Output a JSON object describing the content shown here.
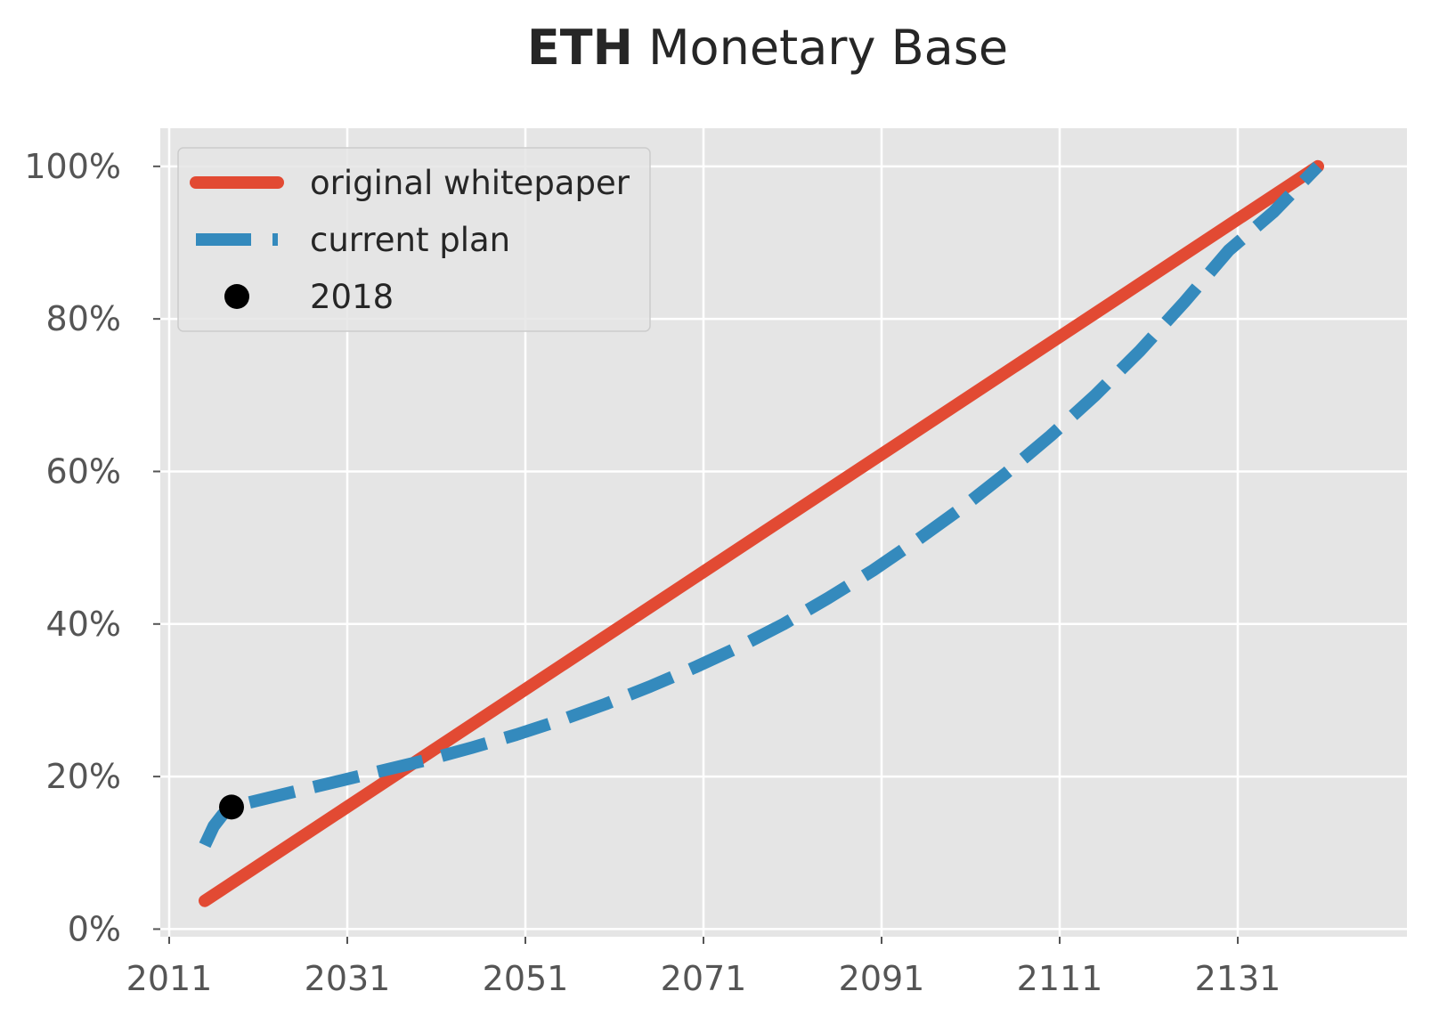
{
  "chart_data": {
    "type": "line",
    "title_bold": "ETH",
    "title_rest": " Monetary Base",
    "xlabel": "",
    "ylabel": "",
    "xlim": [
      2010,
      2150
    ],
    "ylim": [
      -1,
      105
    ],
    "x_ticks": [
      2011,
      2031,
      2051,
      2071,
      2091,
      2111,
      2131
    ],
    "x_tick_labels": [
      "2011",
      "2031",
      "2051",
      "2071",
      "2091",
      "2111",
      "2131"
    ],
    "y_ticks": [
      0,
      20,
      40,
      60,
      80,
      100
    ],
    "y_tick_labels": [
      "0%",
      "20%",
      "40%",
      "60%",
      "80%",
      "100%"
    ],
    "grid": true,
    "legend_position": "top-left",
    "series": [
      {
        "name": "original whitepaper",
        "style": "solid",
        "color": "#E24A33",
        "x": [
          2015,
          2140
        ],
        "y": [
          3.7,
          100
        ]
      },
      {
        "name": "current plan",
        "style": "dashed",
        "color": "#348ABD",
        "x": [
          2015,
          2016,
          2017,
          2018,
          2020,
          2025,
          2030,
          2035,
          2040,
          2045,
          2050,
          2055,
          2060,
          2065,
          2070,
          2075,
          2080,
          2085,
          2090,
          2095,
          2100,
          2105,
          2110,
          2115,
          2120,
          2125,
          2130,
          2135,
          2140
        ],
        "y": [
          11,
          13.5,
          15,
          16,
          16.6,
          18,
          19.4,
          20.8,
          22.2,
          23.8,
          25.5,
          27.4,
          29.5,
          31.8,
          34.3,
          37,
          40,
          43.4,
          47,
          51,
          55.2,
          59.8,
          64.7,
          70,
          75.8,
          82.2,
          89,
          94,
          100
        ]
      },
      {
        "name": "2018",
        "style": "marker",
        "color": "#000000",
        "x": [
          2018
        ],
        "y": [
          16
        ]
      }
    ]
  }
}
